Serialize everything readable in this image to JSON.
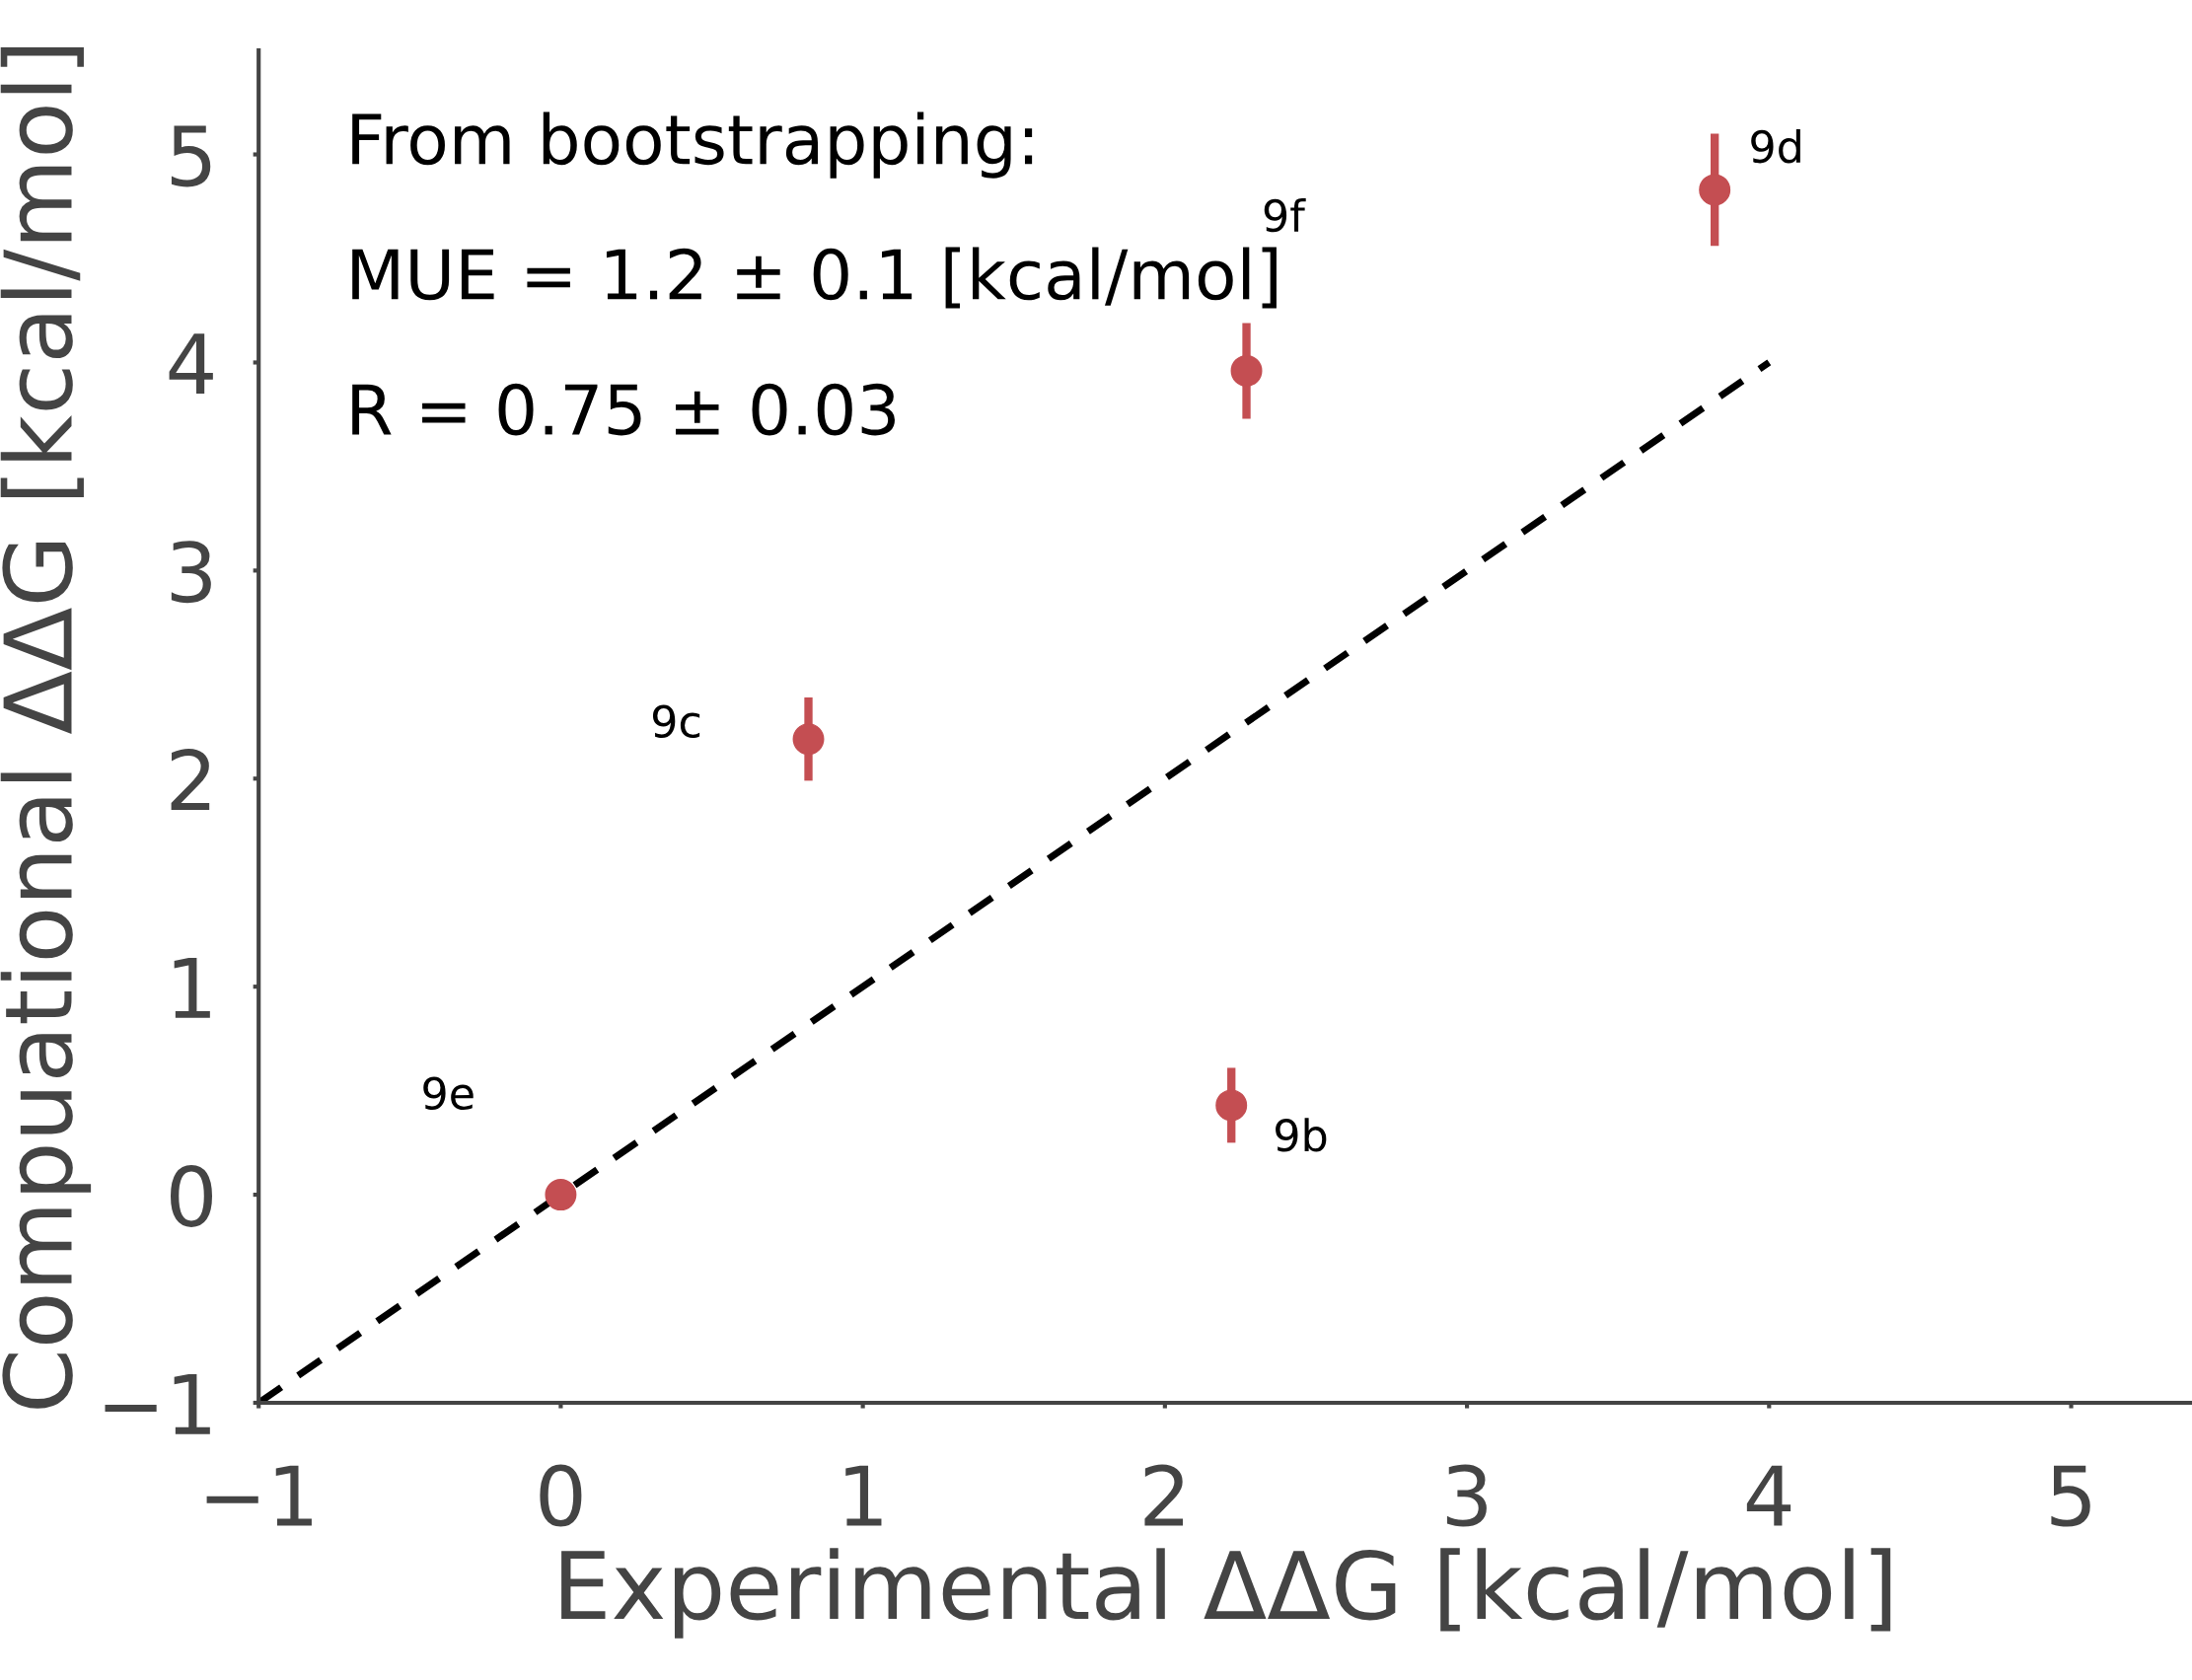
{
  "chart_data": {
    "type": "scatter",
    "xlabel": "Experimental ΔΔG [kcal/mol]",
    "ylabel": "Compuational ΔΔG [kcal/mol]",
    "xlim": [
      -1,
      5.4
    ],
    "ylim": [
      -1,
      5.5
    ],
    "xticks": [
      -1,
      0,
      1,
      2,
      3,
      4,
      5
    ],
    "yticks": [
      -1,
      0,
      1,
      2,
      3,
      4,
      5
    ],
    "grid": false,
    "marker": "circle",
    "series": [
      {
        "type": "scatter",
        "color": "#c44e52",
        "x": [
          0,
          0.82,
          2.27,
          2.22,
          3.82
        ],
        "values": [
          0.0,
          2.19,
          3.96,
          0.43,
          4.83
        ],
        "errors": [
          null,
          0.2,
          0.23,
          0.18,
          0.27
        ]
      },
      {
        "type": "line",
        "color": "#000000",
        "line_style": "dashed",
        "marker": "none",
        "x": [
          -1,
          4
        ],
        "values": [
          -1,
          4
        ]
      }
    ],
    "annotations": [
      "From bootstrapping:",
      "MUE = 1.2 ± 0.1 [kcal/mol]",
      "R = 0.75 ± 0.03",
      "9e",
      "9c",
      "9f",
      "9b",
      "9d"
    ]
  }
}
